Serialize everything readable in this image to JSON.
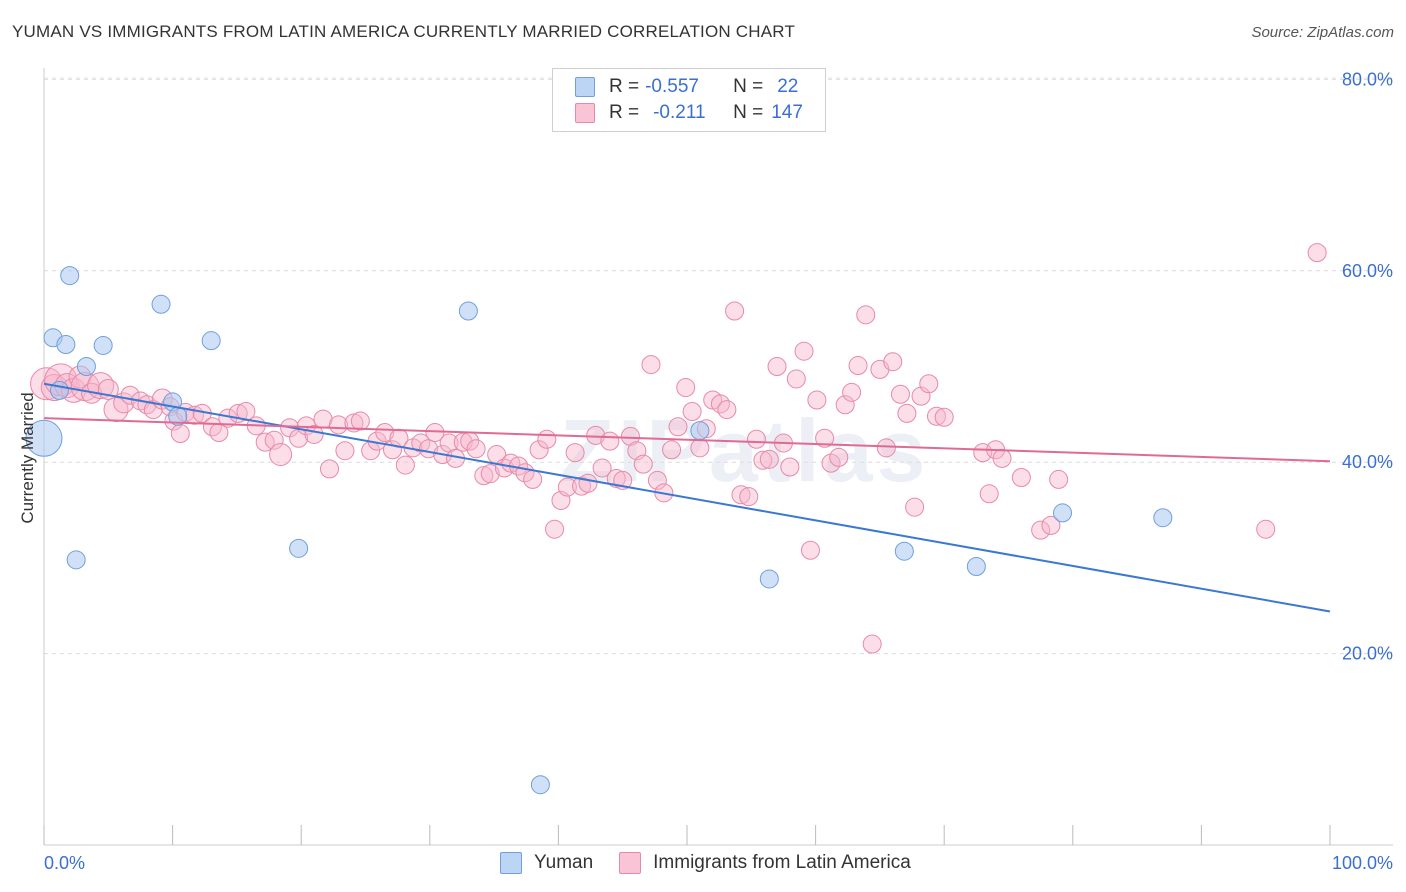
{
  "title": "YUMAN VS IMMIGRANTS FROM LATIN AMERICA CURRENTLY MARRIED CORRELATION CHART",
  "source": "Source: ZipAtlas.com",
  "watermark": "ZIPatlas",
  "legend": {
    "rows": [
      {
        "r_label": "R =",
        "r_value": "-0.557",
        "n_label": "N =",
        "n_value": "22"
      },
      {
        "r_label": "R =",
        "r_value": "-0.211",
        "n_label": "N =",
        "n_value": "147"
      }
    ]
  },
  "colors": {
    "yuman_fill": "#a9c8f0",
    "yuman_stroke": "#6f9fde",
    "yuman_line": "#3a78d4",
    "latin_fill": "#f7b6cb",
    "latin_stroke": "#e889a8",
    "latin_line": "#e06a94",
    "axis_text": "#3a6fd1"
  },
  "chart_data": {
    "type": "scatter",
    "title": "YUMAN VS IMMIGRANTS FROM LATIN AMERICA CURRENTLY MARRIED CORRELATION CHART",
    "xlabel": "",
    "ylabel": "Currently Married",
    "xlim": [
      0,
      100
    ],
    "ylim": [
      0,
      85
    ],
    "x_tick_labels": [
      "0.0%",
      "100.0%"
    ],
    "y_ticks": [
      20,
      40,
      60,
      80
    ],
    "y_tick_labels": [
      "20.0%",
      "40.0%",
      "60.0%",
      "80.0%"
    ],
    "grid": true,
    "legend_position": "top-center",
    "series": [
      {
        "name": "Yuman",
        "r": -0.557,
        "n": 22,
        "trend": [
          [
            0,
            48.2
          ],
          [
            100,
            24.4
          ]
        ],
        "points": [
          [
            0.0,
            42.5,
            18
          ],
          [
            0.7,
            53.0,
            9
          ],
          [
            1.2,
            47.5,
            9
          ],
          [
            1.7,
            52.3,
            9
          ],
          [
            2.0,
            59.5,
            9
          ],
          [
            2.5,
            29.8,
            9
          ],
          [
            3.3,
            50.0,
            9
          ],
          [
            4.6,
            52.2,
            9
          ],
          [
            9.1,
            56.5,
            9
          ],
          [
            10.0,
            46.3,
            9
          ],
          [
            10.4,
            44.8,
            9
          ],
          [
            13.0,
            52.7,
            9
          ],
          [
            19.8,
            31.0,
            9
          ],
          [
            33.0,
            55.8,
            9
          ],
          [
            38.6,
            6.3,
            9
          ],
          [
            51.0,
            43.3,
            9
          ],
          [
            56.4,
            27.8,
            9
          ],
          [
            66.9,
            30.7,
            9
          ],
          [
            72.5,
            29.1,
            9
          ],
          [
            79.2,
            34.7,
            9
          ],
          [
            87.0,
            34.2,
            9
          ]
        ]
      },
      {
        "name": "Immigrants from Latin America",
        "r": -0.211,
        "n": 147,
        "trend": [
          [
            0,
            44.6
          ],
          [
            100,
            40.1
          ]
        ],
        "points": [
          [
            0.2,
            48.2,
            16
          ],
          [
            0.8,
            47.8,
            13
          ],
          [
            1.3,
            48.6,
            16
          ],
          [
            1.8,
            48.0,
            12
          ],
          [
            2.3,
            47.5,
            12
          ],
          [
            2.8,
            48.9,
            11
          ],
          [
            3.2,
            47.9,
            14
          ],
          [
            3.7,
            47.2,
            10
          ],
          [
            4.4,
            48.0,
            13
          ],
          [
            5.0,
            47.6,
            10
          ],
          [
            5.6,
            45.5,
            12
          ],
          [
            6.2,
            46.2,
            10
          ],
          [
            6.7,
            47.0,
            9
          ],
          [
            7.5,
            46.4,
            9
          ],
          [
            8.0,
            46.0,
            9
          ],
          [
            8.5,
            45.5,
            9
          ],
          [
            9.2,
            46.6,
            10
          ],
          [
            9.8,
            45.8,
            9
          ],
          [
            10.1,
            44.3,
            9
          ],
          [
            10.6,
            43.0,
            9
          ],
          [
            11.0,
            45.2,
            9
          ],
          [
            11.7,
            44.9,
            9
          ],
          [
            12.3,
            45.1,
            9
          ],
          [
            13.1,
            43.7,
            9
          ],
          [
            13.6,
            43.1,
            9
          ],
          [
            14.3,
            44.6,
            9
          ],
          [
            15.1,
            45.1,
            9
          ],
          [
            15.7,
            45.3,
            9
          ],
          [
            16.5,
            43.8,
            9
          ],
          [
            17.2,
            42.1,
            9
          ],
          [
            17.9,
            42.3,
            9
          ],
          [
            18.4,
            40.8,
            11
          ],
          [
            19.1,
            43.6,
            9
          ],
          [
            19.8,
            42.5,
            9
          ],
          [
            20.4,
            43.8,
            9
          ],
          [
            21.0,
            42.9,
            9
          ],
          [
            21.7,
            44.5,
            9
          ],
          [
            22.2,
            39.3,
            9
          ],
          [
            22.9,
            43.9,
            9
          ],
          [
            23.4,
            41.2,
            9
          ],
          [
            24.1,
            44.1,
            9
          ],
          [
            24.6,
            44.3,
            9
          ],
          [
            25.4,
            41.2,
            9
          ],
          [
            25.9,
            42.2,
            9
          ],
          [
            26.5,
            43.1,
            9
          ],
          [
            27.1,
            41.3,
            9
          ],
          [
            27.6,
            42.5,
            9
          ],
          [
            28.1,
            39.7,
            9
          ],
          [
            28.7,
            41.5,
            9
          ],
          [
            29.3,
            42.0,
            9
          ],
          [
            29.9,
            41.4,
            9
          ],
          [
            30.4,
            43.1,
            9
          ],
          [
            31.0,
            40.8,
            9
          ],
          [
            31.5,
            42.0,
            9
          ],
          [
            32.0,
            40.4,
            9
          ],
          [
            32.6,
            42.1,
            9
          ],
          [
            33.1,
            42.2,
            9
          ],
          [
            33.6,
            41.4,
            9
          ],
          [
            34.2,
            38.6,
            9
          ],
          [
            34.7,
            38.8,
            9
          ],
          [
            35.2,
            40.8,
            9
          ],
          [
            35.8,
            39.4,
            9
          ],
          [
            36.3,
            39.9,
            9
          ],
          [
            36.9,
            39.6,
            9
          ],
          [
            37.4,
            38.9,
            9
          ],
          [
            38.0,
            38.2,
            9
          ],
          [
            38.5,
            41.3,
            9
          ],
          [
            39.1,
            42.4,
            9
          ],
          [
            39.7,
            33.0,
            9
          ],
          [
            40.2,
            36.0,
            9
          ],
          [
            40.7,
            37.4,
            9
          ],
          [
            41.3,
            41.0,
            9
          ],
          [
            41.8,
            37.5,
            9
          ],
          [
            42.3,
            37.8,
            9
          ],
          [
            42.9,
            42.8,
            9
          ],
          [
            43.4,
            39.4,
            9
          ],
          [
            44.0,
            42.2,
            9
          ],
          [
            44.5,
            38.3,
            9
          ],
          [
            45.0,
            38.1,
            9
          ],
          [
            45.6,
            42.7,
            9
          ],
          [
            46.1,
            41.2,
            9
          ],
          [
            46.6,
            39.8,
            9
          ],
          [
            47.2,
            50.2,
            9
          ],
          [
            47.7,
            38.1,
            9
          ],
          [
            48.2,
            36.8,
            9
          ],
          [
            48.8,
            41.3,
            9
          ],
          [
            49.3,
            43.7,
            9
          ],
          [
            49.9,
            47.8,
            9
          ],
          [
            50.4,
            45.3,
            9
          ],
          [
            51.0,
            41.5,
            9
          ],
          [
            51.5,
            43.5,
            9
          ],
          [
            52.0,
            46.5,
            9
          ],
          [
            52.6,
            46.1,
            9
          ],
          [
            53.1,
            45.5,
            9
          ],
          [
            53.7,
            55.8,
            9
          ],
          [
            54.2,
            36.6,
            9
          ],
          [
            54.8,
            36.4,
            9
          ],
          [
            55.4,
            42.4,
            9
          ],
          [
            55.9,
            40.2,
            9
          ],
          [
            56.4,
            40.3,
            9
          ],
          [
            57.0,
            50.0,
            9
          ],
          [
            57.5,
            42.0,
            9
          ],
          [
            58.0,
            39.5,
            9
          ],
          [
            58.5,
            48.7,
            9
          ],
          [
            59.1,
            51.6,
            9
          ],
          [
            59.6,
            30.8,
            9
          ],
          [
            60.1,
            46.5,
            9
          ],
          [
            60.7,
            42.5,
            9
          ],
          [
            61.2,
            39.9,
            9
          ],
          [
            61.8,
            40.5,
            9
          ],
          [
            62.3,
            46.0,
            9
          ],
          [
            62.8,
            47.3,
            9
          ],
          [
            63.3,
            50.1,
            9
          ],
          [
            63.9,
            55.4,
            9
          ],
          [
            64.4,
            21.0,
            9
          ],
          [
            65.0,
            49.7,
            9
          ],
          [
            65.5,
            41.5,
            9
          ],
          [
            66.0,
            50.5,
            9
          ],
          [
            66.6,
            47.1,
            9
          ],
          [
            67.1,
            45.1,
            9
          ],
          [
            67.7,
            35.3,
            9
          ],
          [
            68.2,
            46.9,
            9
          ],
          [
            68.8,
            48.2,
            9
          ],
          [
            69.4,
            44.8,
            9
          ],
          [
            70.0,
            44.7,
            9
          ],
          [
            73.0,
            41.0,
            9
          ],
          [
            73.5,
            36.7,
            9
          ],
          [
            74.0,
            41.3,
            9
          ],
          [
            74.5,
            40.4,
            9
          ],
          [
            76.0,
            38.4,
            9
          ],
          [
            77.5,
            32.9,
            9
          ],
          [
            78.3,
            33.4,
            9
          ],
          [
            78.9,
            38.2,
            9
          ],
          [
            95.0,
            33.0,
            9
          ],
          [
            99.0,
            61.9,
            9
          ]
        ]
      }
    ]
  },
  "bottom_legend": [
    "Yuman",
    "Immigrants from Latin America"
  ]
}
